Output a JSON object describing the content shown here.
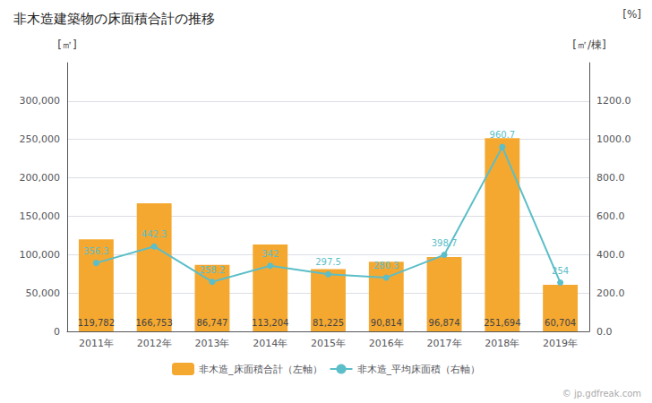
{
  "chart_data": {
    "type": "bar",
    "title": "非木造建築物の床面積合計の推移",
    "categories": [
      "2011年",
      "2012年",
      "2013年",
      "2014年",
      "2015年",
      "2016年",
      "2017年",
      "2018年",
      "2019年"
    ],
    "series": [
      {
        "name": "非木造_床面積合計（左軸）",
        "type": "bar",
        "color": "#f5a830",
        "values": [
          119782,
          166753,
          86747,
          113204,
          81225,
          90814,
          96874,
          251694,
          60704
        ],
        "value_labels": [
          "119,782",
          "166,753",
          "86,747",
          "113,204",
          "81,225",
          "90,814",
          "96,874",
          "251,694",
          "60,704"
        ]
      },
      {
        "name": "非木造_平均床面積（右軸）",
        "type": "line",
        "axis": "y2",
        "color": "#5bbec8",
        "marker": "circle",
        "values": [
          356.3,
          442.3,
          258.2,
          342,
          297.5,
          280.3,
          398.7,
          960.7,
          254
        ]
      }
    ],
    "ylabel": "[㎡]",
    "y2label": "[㎡/棟]",
    "annotations": [
      "[%]",
      "© jp.gdfreak.com"
    ],
    "ylim": [
      0,
      350000
    ],
    "yticks": [
      0,
      {
        "value": 50000,
        "label": "50,000"
      },
      {
        "value": 100000,
        "label": "100,000"
      },
      {
        "value": 150000,
        "label": "150,000"
      },
      {
        "value": 200000,
        "label": "200,000"
      },
      {
        "value": 250000,
        "label": "250,000"
      },
      {
        "value": 300000,
        "label": "300,000"
      }
    ],
    "y2lim": [
      0,
      1400
    ],
    "y2ticks": [
      {
        "value": 0,
        "label": "0.0"
      },
      {
        "value": 200,
        "label": "200.0"
      },
      {
        "value": 400,
        "label": "400.0"
      },
      {
        "value": 600,
        "label": "600.0"
      },
      {
        "value": 800,
        "label": "800.0"
      },
      {
        "value": 1000,
        "label": "1000.0"
      },
      {
        "value": 1200,
        "label": "1200.0"
      }
    ],
    "grid": true,
    "legend": "bottom",
    "data_labels": true
  }
}
